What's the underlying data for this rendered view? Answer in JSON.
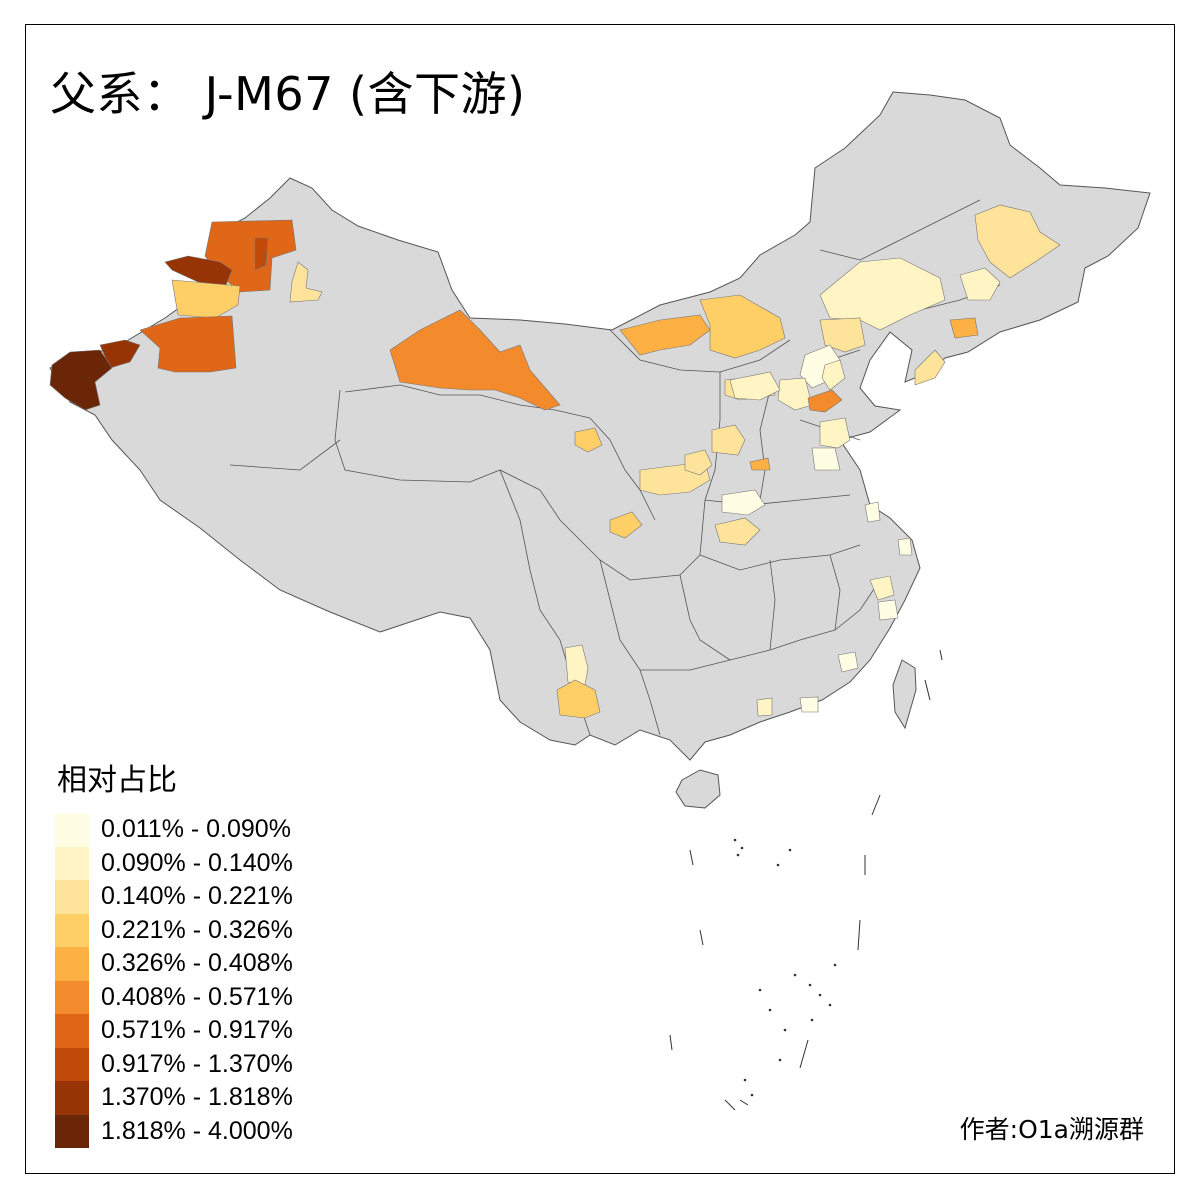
{
  "map": {
    "title": "父系： J-M67 (含下游)",
    "legend": {
      "title": "相对占比",
      "classes": [
        {
          "label": "0.011% - 0.090%",
          "color": "#fffde4"
        },
        {
          "label": "0.090% - 0.140%",
          "color": "#fff5c4"
        },
        {
          "label": "0.140% - 0.221%",
          "color": "#fee49b"
        },
        {
          "label": "0.221% - 0.326%",
          "color": "#fecf66"
        },
        {
          "label": "0.326% - 0.408%",
          "color": "#fdb043"
        },
        {
          "label": "0.408% - 0.571%",
          "color": "#f38a2b"
        },
        {
          "label": "0.571% - 0.917%",
          "color": "#e06717"
        },
        {
          "label": "0.917% - 1.370%",
          "color": "#c04a0a"
        },
        {
          "label": "1.370% - 1.818%",
          "color": "#963406"
        },
        {
          "label": "1.818% - 4.000%",
          "color": "#6b2608"
        }
      ]
    },
    "author": "作者:O1a溯源群",
    "base_color": "#d9d9d9",
    "boundary_color": "#555555"
  }
}
